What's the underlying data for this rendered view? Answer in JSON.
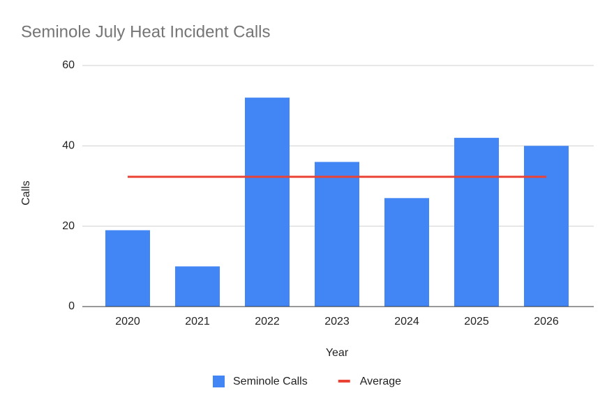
{
  "chart_data": {
    "type": "bar",
    "title": "Seminole July Heat Incident Calls",
    "x_label": "Year",
    "y_label": "Calls",
    "categories": [
      "2020",
      "2021",
      "2022",
      "2023",
      "2024",
      "2025",
      "2026"
    ],
    "series": [
      {
        "name": "Seminole Calls",
        "type": "bar",
        "color": "#4285f4",
        "values": [
          19,
          10,
          52,
          36,
          27,
          42,
          40
        ]
      },
      {
        "name": "Average",
        "type": "line",
        "color": "#ea4335",
        "values": [
          32.3,
          32.3,
          32.3,
          32.3,
          32.3,
          32.3,
          32.3
        ]
      }
    ],
    "ylim": [
      0,
      60
    ],
    "yticks": [
      0,
      20,
      40,
      60
    ],
    "grid": true,
    "legend": "bottom"
  }
}
